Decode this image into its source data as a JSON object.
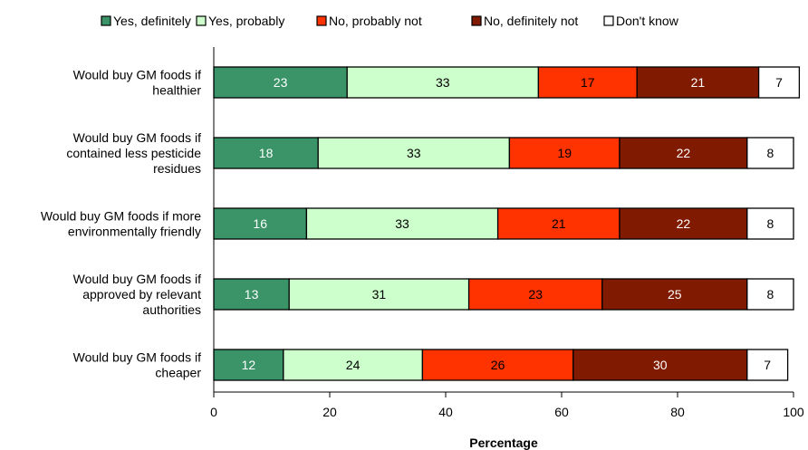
{
  "chart_data": {
    "type": "bar",
    "orientation": "horizontal",
    "stacked": true,
    "title": "",
    "xlabel": "Percentage",
    "ylabel": "",
    "xlim": [
      0,
      100
    ],
    "x_ticks": [
      0,
      20,
      40,
      60,
      80,
      100
    ],
    "grid": false,
    "legend_position": "top",
    "categories": [
      [
        "Would buy GM foods if",
        "healthier"
      ],
      [
        "Would buy GM foods if",
        "contained less pesticide",
        "residues"
      ],
      [
        "Would buy GM foods if more",
        "environmentally friendly"
      ],
      [
        "Would buy GM foods if",
        "approved by relevant",
        "authorities"
      ],
      [
        "Would buy GM foods if",
        "cheaper"
      ]
    ],
    "series": [
      {
        "name": "Yes, definitely",
        "color": "#3a9467",
        "label_color": "#ffffff",
        "values": [
          23,
          18,
          16,
          13,
          12
        ]
      },
      {
        "name": "Yes, probably",
        "color": "#ccffcc",
        "label_color": "#000000",
        "values": [
          33,
          33,
          33,
          31,
          24
        ]
      },
      {
        "name": "No, probably not",
        "color": "#ff3300",
        "label_color": "#000000",
        "values": [
          17,
          19,
          21,
          23,
          26
        ]
      },
      {
        "name": "No, definitely not",
        "color": "#801a00",
        "label_color": "#ffffff",
        "values": [
          21,
          22,
          22,
          25,
          30
        ]
      },
      {
        "name": "Don't know",
        "color": "#ffffff",
        "label_color": "#000000",
        "values": [
          7,
          8,
          8,
          8,
          7
        ]
      }
    ]
  }
}
